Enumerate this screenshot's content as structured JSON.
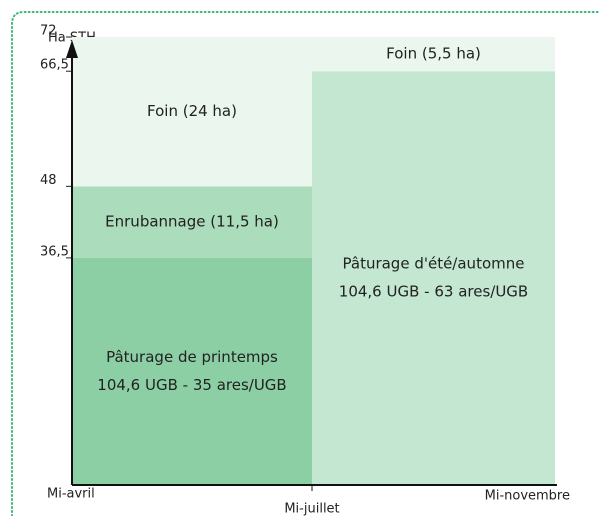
{
  "chart_data": {
    "type": "stacked-bar",
    "y_label": "Ha STH",
    "categories": [
      "Mi-avril",
      "Mi-juillet",
      "Mi-novembre"
    ],
    "periods": [
      {
        "segments": [
          {
            "label": [
              "Pâturage de printemps",
              "104,6 UGB - 35 ares/UGB"
            ],
            "value": 36.5,
            "color": "#8dcfa5"
          },
          {
            "label": [
              "Enrubannage (11,5 ha)"
            ],
            "value": 11.5,
            "color": "#abdcbb"
          },
          {
            "label": [
              "Foin (24 ha)"
            ],
            "value": 24,
            "color": "#eaf6ee"
          }
        ]
      },
      {
        "segments": [
          {
            "label": [
              "Pâturage d'été/automne",
              "104,6 UGB - 63 ares/UGB"
            ],
            "value": 66.5,
            "color": "#c3e7d0"
          },
          {
            "label": [
              "Foin (5,5 ha)"
            ],
            "value": 5.5,
            "color": "#eaf6ee"
          }
        ]
      }
    ],
    "ylim": [
      0,
      72
    ],
    "yticks": [
      {
        "value": 36.5,
        "label": "36,5"
      },
      48,
      {
        "value": 66.5,
        "label": "66,5"
      },
      72
    ],
    "border_color": "#3cb878"
  }
}
